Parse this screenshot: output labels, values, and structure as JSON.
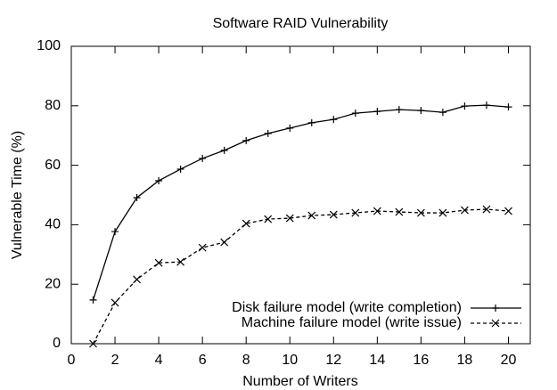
{
  "chart_data": {
    "type": "line",
    "title": "Software RAID Vulnerability",
    "x_label": "Number of Writers",
    "y_label": "Vulnerable Time (%)",
    "x": [
      1,
      2,
      3,
      4,
      5,
      6,
      7,
      8,
      9,
      10,
      11,
      12,
      13,
      14,
      15,
      16,
      17,
      18,
      19,
      20
    ],
    "series": [
      {
        "name": "Disk failure model (write completion)",
        "color": "#000000",
        "marker": "plus",
        "dash": false,
        "values": [
          14.7,
          37.7,
          49.1,
          54.8,
          58.7,
          62.3,
          65,
          68.3,
          70.7,
          72.5,
          74.3,
          75.4,
          77.5,
          78.1,
          78.7,
          78.4,
          77.8,
          79.9,
          80.2,
          79.6
        ]
      },
      {
        "name": "Machine failure model (write issue)",
        "color": "#000000",
        "marker": "x",
        "dash": true,
        "values": [
          0,
          13.8,
          21.6,
          27.2,
          27.5,
          32.3,
          34.1,
          40.4,
          41.9,
          42.2,
          43.1,
          43.4,
          44,
          44.6,
          44.3,
          44,
          44,
          44.9,
          45.2,
          44.6
        ]
      }
    ],
    "xlim": [
      0,
      21
    ],
    "xticks": [
      0,
      2,
      4,
      6,
      8,
      10,
      12,
      14,
      16,
      18,
      20
    ],
    "ylim": [
      0,
      100
    ],
    "yticks": [
      0,
      20,
      40,
      60,
      80,
      100
    ],
    "grid": false,
    "legend": "lower-right"
  }
}
